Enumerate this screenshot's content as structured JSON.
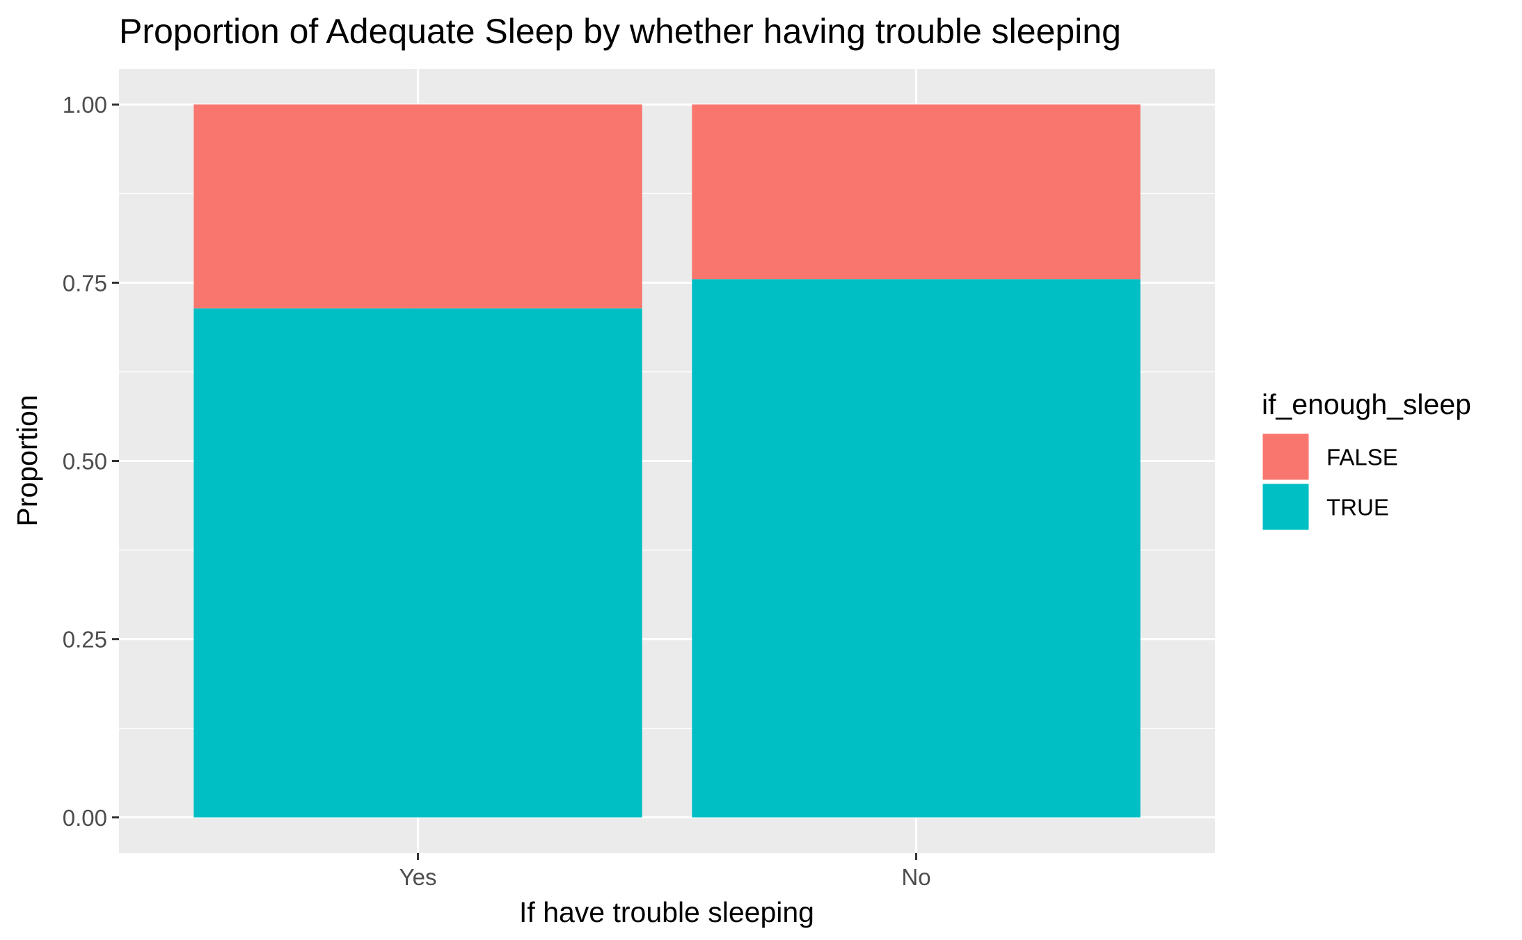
{
  "chart_data": {
    "type": "bar",
    "stacked": true,
    "title": "Proportion of Adequate Sleep by whether having trouble sleeping",
    "xlabel": "If have trouble sleeping",
    "ylabel": "Proportion",
    "categories": [
      "Yes",
      "No"
    ],
    "series": [
      {
        "name": "TRUE",
        "color": "#00BFC4",
        "values": [
          0.714,
          0.755
        ]
      },
      {
        "name": "FALSE",
        "color": "#F8766D",
        "values": [
          0.286,
          0.245
        ]
      }
    ],
    "ylim": [
      -0.05,
      1.05
    ],
    "yticks": [
      0.0,
      0.25,
      0.5,
      0.75,
      1.0
    ],
    "ytick_labels": [
      "0.00",
      "0.25",
      "0.50",
      "0.75",
      "1.00"
    ],
    "grid": true,
    "panel_color": "#EBEBEB",
    "legend": {
      "title": "if_enough_sleep",
      "position": "right",
      "entries": [
        {
          "label": "FALSE",
          "color": "#F8766D"
        },
        {
          "label": "TRUE",
          "color": "#00BFC4"
        }
      ]
    }
  }
}
